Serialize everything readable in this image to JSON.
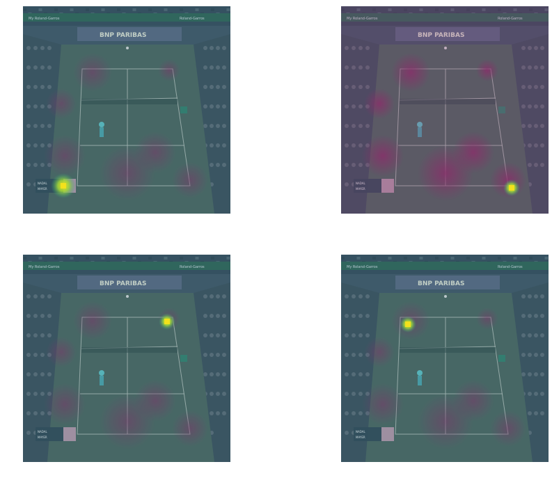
{
  "panels": [
    {
      "name": "panel-top-left",
      "hotspots": [
        {
          "cx": 58,
          "cy": 258,
          "r": 18,
          "label": "scoreboard"
        }
      ]
    },
    {
      "name": "panel-top-right",
      "hotspots": [
        {
          "cx": 245,
          "cy": 261,
          "r": 12,
          "label": "near-right-corner"
        }
      ]
    },
    {
      "name": "panel-bottom-left",
      "hotspots": [
        {
          "cx": 207,
          "cy": 96,
          "r": 12,
          "label": "far-right-court"
        }
      ]
    },
    {
      "name": "panel-bottom-right",
      "hotspots": [
        {
          "cx": 96,
          "cy": 100,
          "r": 12,
          "label": "far-left-court"
        }
      ]
    }
  ],
  "overlay": {
    "base_court_color": "#4a6b63",
    "attention_low_color": "#3b5a70",
    "attention_mid_color": "#8a2f6a",
    "attention_high_color": "#f4e21b"
  },
  "scene": {
    "banner": "BNP PARIBAS",
    "small_banner_left": "My Roland-Garros",
    "small_banner_right": "Roland-Garros",
    "score_names": [
      "NADAL",
      "MAYER"
    ]
  }
}
